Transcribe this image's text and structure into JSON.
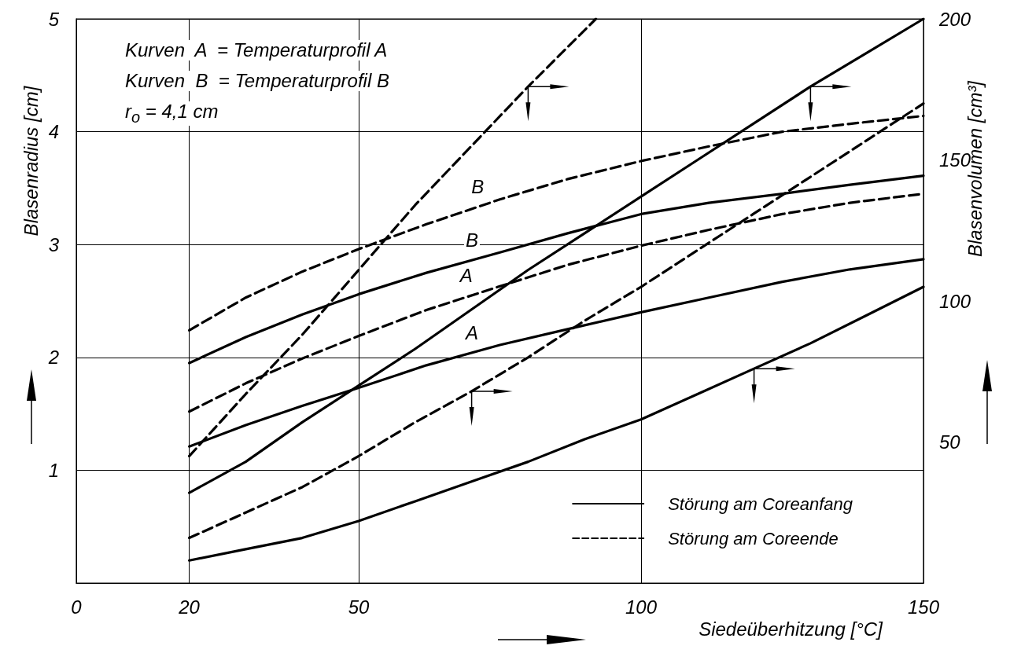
{
  "chart_data": {
    "type": "line",
    "xlabel": "Siedeüberhitzung [°C]",
    "ylabel": "Blasenradius [cm]",
    "y2label": "Blasenvolumen [cm³]",
    "xlim": [
      0,
      150
    ],
    "xticks": [
      0,
      20,
      50,
      100,
      150
    ],
    "ylim": [
      0,
      5
    ],
    "yticks": [
      1,
      2,
      3,
      4,
      5
    ],
    "y2lim": [
      0,
      200
    ],
    "y2ticks": [
      50,
      100,
      150,
      200
    ],
    "grid": true,
    "legend": "bottom right",
    "marker": "none",
    "series": [
      {
        "name": "Störung am Coreende",
        "color": "#000000",
        "line_style": "dashed",
        "x": [
          20,
          30,
          40,
          50,
          62,
          75,
          87,
          100,
          112,
          125,
          137,
          150
        ],
        "values": [
          2.24,
          2.53,
          2.76,
          2.96,
          3.18,
          3.4,
          3.58,
          3.74,
          3.87,
          4.0,
          4.07,
          4.14
        ]
      },
      {
        "name": "Störung am Coreanfang",
        "color": "#000000",
        "line_style": "solid",
        "x": [
          20,
          30,
          40,
          50,
          62,
          75,
          87,
          100,
          112,
          125,
          137,
          150
        ],
        "values": [
          1.95,
          2.18,
          2.38,
          2.56,
          2.75,
          2.93,
          3.1,
          3.27,
          3.37,
          3.45,
          3.53,
          3.61
        ]
      },
      {
        "color": "#000000",
        "line_style": "dashed",
        "x": [
          20,
          30,
          40,
          50,
          62,
          75,
          87,
          100,
          112,
          125,
          137,
          150
        ],
        "values": [
          1.52,
          1.77,
          1.99,
          2.19,
          2.42,
          2.63,
          2.82,
          2.99,
          3.13,
          3.27,
          3.37,
          3.45
        ]
      },
      {
        "color": "#000000",
        "line_style": "solid",
        "x": [
          20,
          30,
          40,
          50,
          62,
          75,
          87,
          100,
          112,
          125,
          137,
          150
        ],
        "values": [
          1.21,
          1.4,
          1.57,
          1.73,
          1.93,
          2.11,
          2.25,
          2.4,
          2.53,
          2.67,
          2.78,
          2.87
        ]
      },
      {
        "color": "#000000",
        "line_style": "dashed",
        "axis": "y2",
        "x": [
          20,
          30,
          40,
          50,
          60,
          70,
          80,
          92
        ],
        "values": [
          45,
          67,
          88,
          111,
          134,
          155,
          176,
          200
        ]
      },
      {
        "color": "#000000",
        "line_style": "solid",
        "axis": "y2",
        "x": [
          20,
          30,
          40,
          50,
          60,
          70,
          80,
          90,
          100,
          110,
          120,
          130,
          140,
          150
        ],
        "values": [
          32,
          43,
          57,
          70,
          83,
          97,
          111,
          124,
          137,
          150,
          163,
          176,
          188,
          200
        ]
      },
      {
        "color": "#000000",
        "line_style": "dashed",
        "axis": "y2",
        "x": [
          20,
          30,
          40,
          50,
          60,
          70,
          80,
          90,
          100,
          110,
          120,
          130,
          140,
          150
        ],
        "values": [
          16,
          25,
          34,
          45,
          57,
          68,
          80,
          93,
          105,
          118,
          131,
          144,
          157,
          170
        ]
      },
      {
        "color": "#000000",
        "line_style": "solid",
        "axis": "y2",
        "x": [
          20,
          30,
          40,
          50,
          60,
          70,
          80,
          90,
          100,
          110,
          120,
          130,
          140,
          150
        ],
        "values": [
          8,
          12,
          16,
          22,
          29,
          36,
          43,
          51,
          58,
          67,
          76,
          85,
          95,
          105
        ]
      }
    ],
    "annotations": [
      "Kurven  A  = Temperaturprofil A",
      "Kurven  B  = Temperaturprofil B",
      "r$_{o}$ = 4,1 cm",
      {
        "text": "B",
        "x": 73,
        "y": 3.37
      },
      {
        "text": "B",
        "x": 72,
        "y": 2.89
      },
      {
        "text": "A",
        "x": 71,
        "y": 2.58
      },
      {
        "text": "A",
        "x": 72,
        "y": 2.07
      }
    ]
  }
}
